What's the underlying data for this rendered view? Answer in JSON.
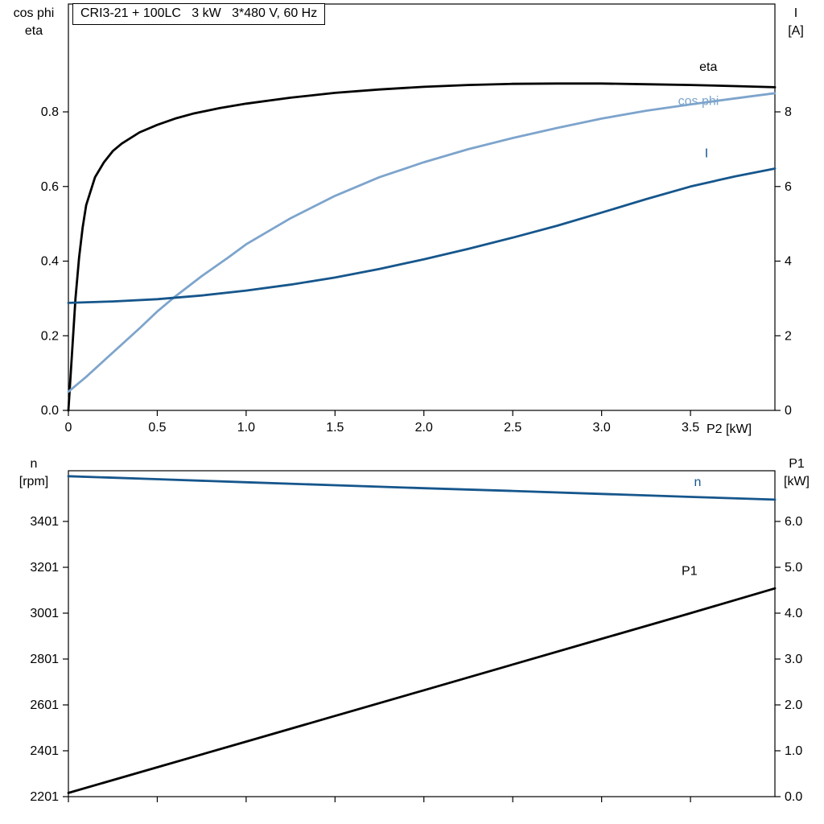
{
  "header": {
    "title": "CRI3-21 + 100LC   3 kW   3*480 V, 60 Hz"
  },
  "colors": {
    "black": "#000000",
    "light_blue": "#7da4cc",
    "dark_blue": "#16568c",
    "frame": "#000000",
    "background": "#ffffff"
  },
  "top_chart": {
    "left_axis_title": [
      "cos phi",
      "eta"
    ],
    "right_axis_title": [
      "I",
      "[A]"
    ],
    "x_axis_title": "P2 [kW]"
  },
  "bottom_chart": {
    "left_axis_title": [
      "n",
      "[rpm]"
    ],
    "right_axis_title": [
      "P1",
      "[kW]"
    ]
  },
  "chart_data": [
    {
      "type": "line",
      "title": "CRI3-21 + 100LC   3 kW   3*480 V, 60 Hz",
      "xlabel": "P2 [kW]",
      "ylabel_left": "cos phi / eta",
      "ylabel_right": "I [A]",
      "xlim": [
        0,
        3.975
      ],
      "ylim_left": [
        0,
        1.089
      ],
      "ylim_right": [
        0,
        10.89
      ],
      "grid": false,
      "legend": "curve-end-labels",
      "x_ticks": [
        0,
        0.5,
        1,
        1.5,
        2,
        2.5,
        3,
        3.5
      ],
      "x_tick_labels": [
        "0",
        "0.5",
        "1.0",
        "1.5",
        "2.0",
        "2.5",
        "3.0",
        "3.5"
      ],
      "y_ticks_left": [
        0,
        0.2,
        0.4,
        0.6,
        0.8
      ],
      "y_tick_labels_left": [
        "0.0",
        "0.2",
        "0.4",
        "0.6",
        "0.8"
      ],
      "y_ticks_right": [
        0,
        2,
        4,
        6,
        8
      ],
      "y_tick_labels_right": [
        "0",
        "2",
        "4",
        "6",
        "8"
      ],
      "series": [
        {
          "name": "eta",
          "axis": "left",
          "color": "black",
          "x": [
            0,
            0.02,
            0.04,
            0.06,
            0.08,
            0.1,
            0.15,
            0.2,
            0.25,
            0.3,
            0.4,
            0.5,
            0.6,
            0.7,
            0.85,
            1.0,
            1.25,
            1.5,
            1.75,
            2.0,
            2.25,
            2.5,
            2.75,
            3.0,
            3.25,
            3.5,
            3.75,
            3.975
          ],
          "y": [
            0,
            0.15,
            0.3,
            0.41,
            0.49,
            0.55,
            0.625,
            0.665,
            0.695,
            0.715,
            0.745,
            0.765,
            0.782,
            0.795,
            0.81,
            0.822,
            0.838,
            0.851,
            0.86,
            0.867,
            0.872,
            0.875,
            0.876,
            0.876,
            0.874,
            0.872,
            0.869,
            0.866
          ],
          "label": {
            "text": "eta",
            "x": 3.55,
            "y": 0.91
          }
        },
        {
          "name": "cos phi",
          "axis": "left",
          "color": "light_blue",
          "x": [
            0,
            0.1,
            0.25,
            0.4,
            0.5,
            0.6,
            0.75,
            0.9,
            1.0,
            1.25,
            1.5,
            1.75,
            2.0,
            2.25,
            2.5,
            2.75,
            3.0,
            3.25,
            3.5,
            3.75,
            3.975
          ],
          "y": [
            0.05,
            0.09,
            0.155,
            0.22,
            0.265,
            0.305,
            0.36,
            0.41,
            0.445,
            0.515,
            0.575,
            0.625,
            0.665,
            0.7,
            0.73,
            0.757,
            0.782,
            0.803,
            0.82,
            0.836,
            0.85
          ],
          "label": {
            "text": "cos phi",
            "x": 3.43,
            "y": 0.818
          }
        },
        {
          "name": "I",
          "axis": "right",
          "color": "dark_blue",
          "x": [
            0,
            0.25,
            0.5,
            0.75,
            1.0,
            1.25,
            1.5,
            1.75,
            2.0,
            2.25,
            2.5,
            2.75,
            3.0,
            3.25,
            3.5,
            3.75,
            3.975
          ],
          "y": [
            2.88,
            2.92,
            2.98,
            3.08,
            3.21,
            3.37,
            3.56,
            3.79,
            4.05,
            4.33,
            4.63,
            4.95,
            5.3,
            5.66,
            6.0,
            6.27,
            6.48
          ],
          "label": {
            "text": "I",
            "x": 3.58,
            "y": 6.78
          }
        }
      ]
    },
    {
      "type": "line",
      "title": "",
      "xlabel": "",
      "ylabel_left": "n [rpm]",
      "ylabel_right": "P1 [kW]",
      "xlim": [
        0,
        3.975
      ],
      "ylim_left": [
        2201,
        3622
      ],
      "ylim_right": [
        0,
        7.105
      ],
      "grid": false,
      "legend": "curve-end-labels",
      "x_ticks": [
        0,
        0.5,
        1,
        1.5,
        2,
        2.5,
        3,
        3.5
      ],
      "x_tick_labels": null,
      "y_ticks_left": [
        2201,
        2401,
        2601,
        2801,
        3001,
        3201,
        3401
      ],
      "y_tick_labels_left": [
        "2201",
        "2401",
        "2601",
        "2801",
        "3001",
        "3201",
        "3401"
      ],
      "y_ticks_right": [
        0,
        1,
        2,
        3,
        4,
        5,
        6
      ],
      "y_tick_labels_right": [
        "0.0",
        "1.0",
        "2.0",
        "3.0",
        "4.0",
        "5.0",
        "6.0"
      ],
      "series": [
        {
          "name": "n",
          "axis": "left",
          "color": "dark_blue",
          "x": [
            0,
            0.5,
            1.0,
            1.5,
            2.0,
            2.5,
            3.0,
            3.5,
            3.975
          ],
          "y": [
            3598,
            3585,
            3572,
            3559,
            3546,
            3534,
            3521,
            3508,
            3496
          ],
          "label": {
            "text": "n",
            "x": 3.52,
            "y": 3556
          }
        },
        {
          "name": "P1",
          "axis": "right",
          "color": "black",
          "x": [
            0,
            0.5,
            1.0,
            1.5,
            2.0,
            2.5,
            3.0,
            3.5,
            3.975
          ],
          "y": [
            0.08,
            0.64,
            1.2,
            1.76,
            2.32,
            2.88,
            3.44,
            4.0,
            4.54
          ],
          "label": {
            "text": "P1",
            "x": 3.45,
            "y": 4.83
          }
        }
      ]
    }
  ]
}
